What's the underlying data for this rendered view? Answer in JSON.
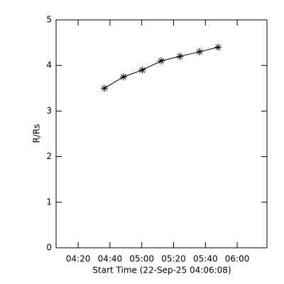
{
  "chart_data": {
    "type": "line",
    "marker": "asterisk",
    "color": "#000000",
    "x_label": "Start Time (22-Sep-25 04:06:08)",
    "y_label": "R/Rs",
    "x": [
      276.5,
      288.5,
      300.3,
      312.2,
      324.0,
      336.3,
      348.0
    ],
    "values": [
      3.5,
      3.75,
      3.9,
      4.1,
      4.2,
      4.3,
      4.4
    ],
    "xlim": [
      246.13,
      378.7
    ],
    "xticks": [
      {
        "value": 260,
        "label": "04:20"
      },
      {
        "value": 280,
        "label": "04:40"
      },
      {
        "value": 300,
        "label": "05:00"
      },
      {
        "value": 320,
        "label": "05:20"
      },
      {
        "value": 340,
        "label": "05:40"
      },
      {
        "value": 360,
        "label": "06:00"
      }
    ],
    "ylim": [
      0,
      5
    ],
    "yticks": [
      0,
      1,
      2,
      3,
      4,
      5
    ]
  }
}
